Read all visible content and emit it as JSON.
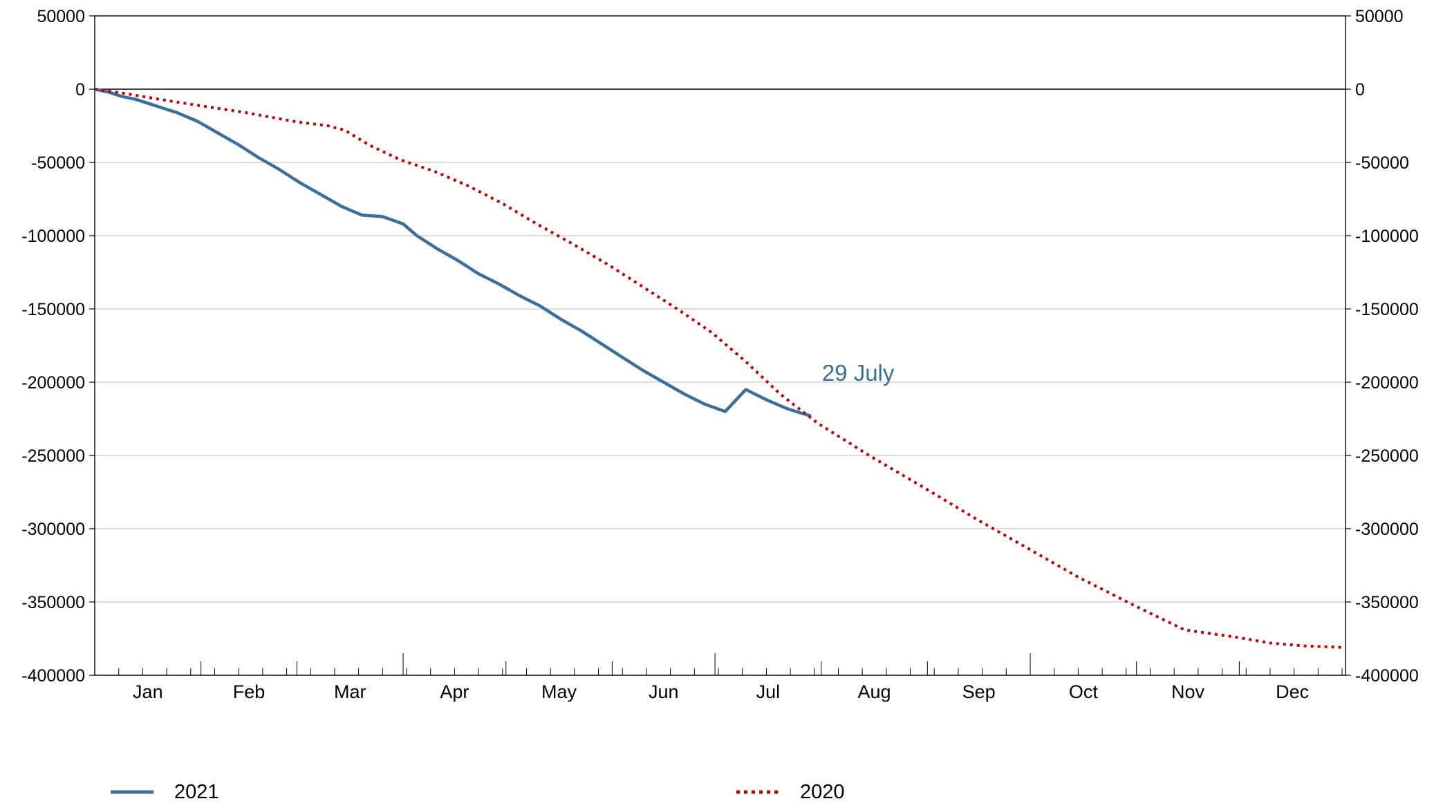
{
  "chart_data": {
    "type": "line",
    "title": "",
    "xlabel": "",
    "ylabel": "",
    "x_range": [
      "2021-01-01",
      "2021-12-31"
    ],
    "ylim": [
      -400000,
      50000
    ],
    "yticks": [
      50000,
      0,
      -50000,
      -100000,
      -150000,
      -200000,
      -250000,
      -300000,
      -350000,
      -400000
    ],
    "ytick_labels": [
      "50000",
      "0",
      "-50000",
      "-100000",
      "-150000",
      "-200000",
      "-250000",
      "-300000",
      "-350000",
      "-400000"
    ],
    "month_labels": [
      "Jan",
      "Feb",
      "Mar",
      "Apr",
      "May",
      "Jun",
      "Jul",
      "Aug",
      "Sep",
      "Oct",
      "Nov",
      "Dec"
    ],
    "grid": "horizontal",
    "dual_y_axis": true,
    "legend_position": "bottom",
    "annotations": [
      {
        "text": "29 July",
        "x": "2021-07-29",
        "y": -185000,
        "color": "#3a6e9d"
      }
    ],
    "series": [
      {
        "name": "2021",
        "style": "solid",
        "color": "#3a6e9d",
        "x": [
          "2021-01-01",
          "2021-01-05",
          "2021-01-09",
          "2021-01-13",
          "2021-01-17",
          "2021-01-21",
          "2021-01-25",
          "2021-01-31",
          "2021-02-06",
          "2021-02-12",
          "2021-02-18",
          "2021-02-24",
          "2021-03-02",
          "2021-03-08",
          "2021-03-14",
          "2021-03-20",
          "2021-03-26",
          "2021-04-01",
          "2021-04-05",
          "2021-04-11",
          "2021-04-17",
          "2021-04-23",
          "2021-04-29",
          "2021-05-05",
          "2021-05-11",
          "2021-05-17",
          "2021-05-23",
          "2021-05-29",
          "2021-06-04",
          "2021-06-10",
          "2021-06-16",
          "2021-06-22",
          "2021-06-28",
          "2021-07-04",
          "2021-07-10",
          "2021-07-16",
          "2021-07-22",
          "2021-07-26",
          "2021-07-29"
        ],
        "values": [
          0,
          -2000,
          -5000,
          -7000,
          -10000,
          -13000,
          -16000,
          -22000,
          -30000,
          -38000,
          -47000,
          -55000,
          -64000,
          -72000,
          -80000,
          -86000,
          -87000,
          -92000,
          -100000,
          -109000,
          -117000,
          -126000,
          -133000,
          -141000,
          -148000,
          -157000,
          -165000,
          -174000,
          -183000,
          -192000,
          -200000,
          -208000,
          -215000,
          -220000,
          -205000,
          -212000,
          -218000,
          -221000,
          -223000
        ]
      },
      {
        "name": "2020",
        "style": "dotted",
        "color": "#c00000",
        "x": [
          "2021-01-01",
          "2021-01-10",
          "2021-01-20",
          "2021-01-31",
          "2021-02-14",
          "2021-02-28",
          "2021-03-10",
          "2021-03-15",
          "2021-03-22",
          "2021-03-31",
          "2021-04-10",
          "2021-04-20",
          "2021-04-30",
          "2021-05-10",
          "2021-05-20",
          "2021-05-31",
          "2021-06-10",
          "2021-06-20",
          "2021-06-30",
          "2021-07-10",
          "2021-07-20",
          "2021-07-31",
          "2021-08-15",
          "2021-08-31",
          "2021-09-15",
          "2021-09-30",
          "2021-10-15",
          "2021-10-31",
          "2021-11-15",
          "2021-11-30",
          "2021-12-10",
          "2021-12-20",
          "2021-12-31"
        ],
        "values": [
          0,
          -3000,
          -7000,
          -11000,
          -16000,
          -22000,
          -25000,
          -28000,
          -38000,
          -48000,
          -56000,
          -66000,
          -78000,
          -92000,
          -105000,
          -120000,
          -135000,
          -150000,
          -166000,
          -186000,
          -208000,
          -228000,
          -250000,
          -272000,
          -293000,
          -313000,
          -333000,
          -352000,
          -369000,
          -374000,
          -378000,
          -380000,
          -381000
        ]
      }
    ]
  }
}
